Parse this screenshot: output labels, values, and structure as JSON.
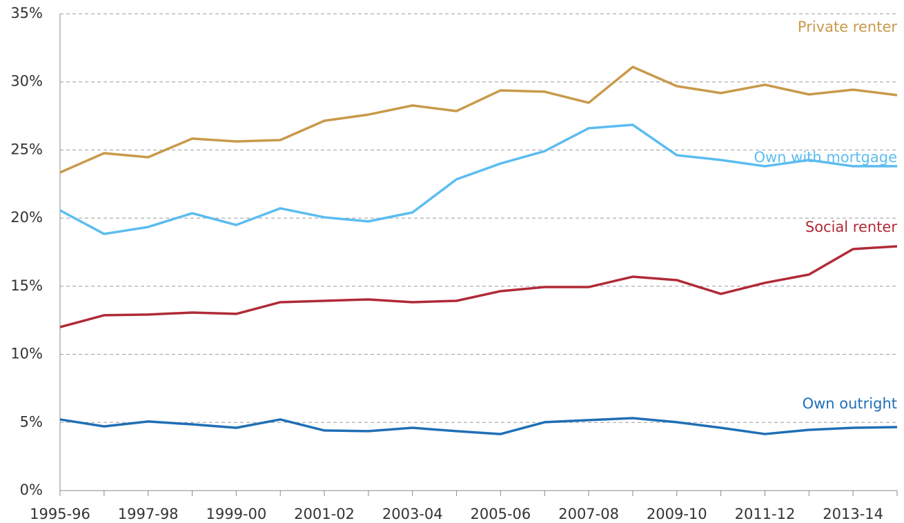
{
  "chart_data": {
    "type": "line",
    "categories": [
      "1995-96",
      null,
      "1997-98",
      null,
      "1999-00",
      null,
      "2001-02",
      null,
      "2003-04",
      null,
      "2005-06",
      null,
      "2007-08",
      null,
      "2009-10",
      null,
      "2011-12",
      null,
      "2013-14",
      null
    ],
    "series": [
      {
        "name": "Private renter",
        "color": "#c9994a",
        "values": [
          23.35,
          24.77,
          24.47,
          25.84,
          25.63,
          25.73,
          27.15,
          27.6,
          28.27,
          27.86,
          29.38,
          29.28,
          28.47,
          31.1,
          29.69,
          29.18,
          29.79,
          29.08,
          29.43,
          29.03
        ]
      },
      {
        "name": "Own with mortgage",
        "color": "#5bbcf0",
        "values": [
          20.57,
          18.84,
          19.35,
          20.36,
          19.5,
          20.72,
          20.06,
          19.76,
          20.42,
          22.85,
          24.01,
          24.92,
          26.6,
          26.85,
          24.62,
          24.27,
          23.81,
          24.27,
          23.81,
          23.81
        ]
      },
      {
        "name": "Social renter",
        "color": "#b02a37",
        "values": [
          12.0,
          12.87,
          12.92,
          13.07,
          12.97,
          13.83,
          13.93,
          14.03,
          13.83,
          13.93,
          14.64,
          14.94,
          14.94,
          15.7,
          15.45,
          14.44,
          15.25,
          15.86,
          17.73,
          17.93
        ]
      },
      {
        "name": "Own outright",
        "color": "#1f6fb5",
        "values": [
          5.22,
          4.71,
          5.07,
          4.86,
          4.61,
          5.22,
          4.41,
          4.36,
          4.61,
          4.36,
          4.15,
          5.02,
          5.17,
          5.32,
          5.02,
          4.61,
          4.15,
          4.46,
          4.61,
          4.66
        ]
      }
    ],
    "ylim": [
      0,
      35
    ],
    "yticks": [
      {
        "value": 0,
        "label": "0%"
      },
      {
        "value": 5,
        "label": "5%"
      },
      {
        "value": 10,
        "label": "10%"
      },
      {
        "value": 15,
        "label": "15%"
      },
      {
        "value": 20,
        "label": "20%"
      },
      {
        "value": 25,
        "label": "25%"
      },
      {
        "value": 30,
        "label": "30%"
      },
      {
        "value": 35,
        "label": "35%"
      }
    ],
    "grid": true
  }
}
